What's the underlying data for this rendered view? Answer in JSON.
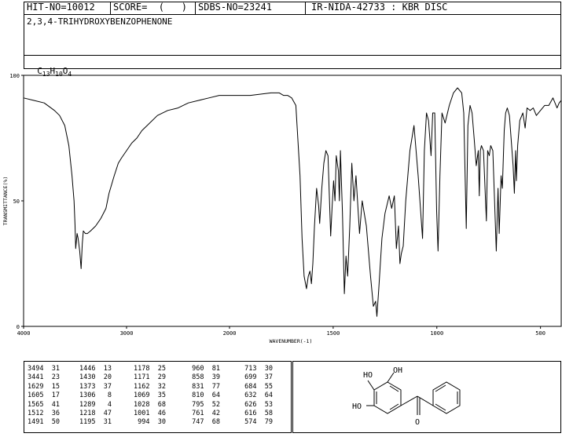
{
  "header": {
    "hit_no": "HIT-NO=10012",
    "score": "SCORE=  (   )",
    "sdbs_no": "SDBS-NO=23241",
    "ir_info": "IR-NIDA-42733 : KBR DISC",
    "compound_name": "2,3,4-TRIHYDROXYBENZOPHENONE",
    "formula_parts": [
      "C",
      "13",
      "H",
      "10",
      "O",
      "4"
    ]
  },
  "chart_data": {
    "type": "line",
    "xlabel": "WAVENUMBER(-1)",
    "ylabel": "TRANSMITTANCE(%)",
    "xlim": [
      4000,
      400
    ],
    "ylim": [
      0,
      100
    ],
    "x_ticks": [
      4000,
      3000,
      2000,
      1500,
      1000,
      500
    ],
    "y_ticks": [
      0,
      50,
      100
    ],
    "series": [
      {
        "color": "#000000",
        "points": [
          [
            4000,
            91
          ],
          [
            3900,
            90
          ],
          [
            3800,
            89
          ],
          [
            3700,
            86
          ],
          [
            3650,
            84
          ],
          [
            3600,
            80
          ],
          [
            3560,
            72
          ],
          [
            3530,
            60
          ],
          [
            3510,
            50
          ],
          [
            3500,
            40
          ],
          [
            3494,
            31
          ],
          [
            3480,
            37
          ],
          [
            3470,
            35
          ],
          [
            3455,
            30
          ],
          [
            3441,
            23
          ],
          [
            3430,
            33
          ],
          [
            3420,
            38
          ],
          [
            3400,
            37
          ],
          [
            3380,
            37
          ],
          [
            3350,
            38
          ],
          [
            3300,
            40
          ],
          [
            3250,
            43
          ],
          [
            3200,
            47
          ],
          [
            3170,
            53
          ],
          [
            3120,
            60
          ],
          [
            3080,
            65
          ],
          [
            3050,
            67
          ],
          [
            3000,
            70
          ],
          [
            2950,
            73
          ],
          [
            2900,
            75
          ],
          [
            2850,
            78
          ],
          [
            2800,
            80
          ],
          [
            2700,
            84
          ],
          [
            2600,
            86
          ],
          [
            2500,
            87
          ],
          [
            2400,
            89
          ],
          [
            2300,
            90
          ],
          [
            2200,
            91
          ],
          [
            2100,
            92
          ],
          [
            2000,
            92
          ],
          [
            1900,
            92
          ],
          [
            1800,
            93
          ],
          [
            1760,
            93
          ],
          [
            1740,
            92
          ],
          [
            1720,
            92
          ],
          [
            1700,
            91
          ],
          [
            1680,
            88
          ],
          [
            1660,
            60
          ],
          [
            1650,
            35
          ],
          [
            1640,
            20
          ],
          [
            1629,
            15
          ],
          [
            1620,
            20
          ],
          [
            1612,
            22
          ],
          [
            1605,
            17
          ],
          [
            1598,
            25
          ],
          [
            1590,
            40
          ],
          [
            1580,
            55
          ],
          [
            1570,
            48
          ],
          [
            1565,
            41
          ],
          [
            1555,
            55
          ],
          [
            1545,
            65
          ],
          [
            1535,
            70
          ],
          [
            1525,
            68
          ],
          [
            1512,
            36
          ],
          [
            1505,
            48
          ],
          [
            1498,
            58
          ],
          [
            1491,
            50
          ],
          [
            1485,
            68
          ],
          [
            1475,
            62
          ],
          [
            1470,
            50
          ],
          [
            1465,
            70
          ],
          [
            1455,
            45
          ],
          [
            1446,
            13
          ],
          [
            1438,
            28
          ],
          [
            1430,
            20
          ],
          [
            1420,
            40
          ],
          [
            1410,
            65
          ],
          [
            1400,
            50
          ],
          [
            1390,
            60
          ],
          [
            1373,
            37
          ],
          [
            1360,
            50
          ],
          [
            1340,
            40
          ],
          [
            1320,
            20
          ],
          [
            1306,
            8
          ],
          [
            1295,
            10
          ],
          [
            1289,
            4
          ],
          [
            1280,
            15
          ],
          [
            1265,
            35
          ],
          [
            1250,
            45
          ],
          [
            1230,
            52
          ],
          [
            1218,
            47
          ],
          [
            1205,
            52
          ],
          [
            1195,
            31
          ],
          [
            1185,
            40
          ],
          [
            1178,
            25
          ],
          [
            1171,
            29
          ],
          [
            1162,
            32
          ],
          [
            1150,
            50
          ],
          [
            1130,
            70
          ],
          [
            1110,
            80
          ],
          [
            1090,
            60
          ],
          [
            1069,
            35
          ],
          [
            1060,
            70
          ],
          [
            1050,
            85
          ],
          [
            1040,
            82
          ],
          [
            1028,
            68
          ],
          [
            1020,
            85
          ],
          [
            1010,
            85
          ],
          [
            1001,
            46
          ],
          [
            994,
            30
          ],
          [
            985,
            60
          ],
          [
            975,
            85
          ],
          [
            960,
            81
          ],
          [
            940,
            88
          ],
          [
            920,
            93
          ],
          [
            900,
            95
          ],
          [
            880,
            93
          ],
          [
            870,
            85
          ],
          [
            858,
            39
          ],
          [
            850,
            80
          ],
          [
            840,
            88
          ],
          [
            830,
            85
          ],
          [
            820,
            75
          ],
          [
            810,
            64
          ],
          [
            800,
            70
          ],
          [
            795,
            52
          ],
          [
            790,
            70
          ],
          [
            785,
            72
          ],
          [
            775,
            70
          ],
          [
            761,
            42
          ],
          [
            755,
            70
          ],
          [
            747,
            68
          ],
          [
            740,
            72
          ],
          [
            730,
            70
          ],
          [
            713,
            30
          ],
          [
            705,
            55
          ],
          [
            699,
            37
          ],
          [
            690,
            60
          ],
          [
            684,
            55
          ],
          [
            675,
            78
          ],
          [
            668,
            85
          ],
          [
            660,
            87
          ],
          [
            650,
            84
          ],
          [
            632,
            64
          ],
          [
            626,
            53
          ],
          [
            620,
            70
          ],
          [
            616,
            58
          ],
          [
            610,
            72
          ],
          [
            600,
            82
          ],
          [
            585,
            85
          ],
          [
            574,
            79
          ],
          [
            565,
            87
          ],
          [
            550,
            86
          ],
          [
            535,
            87
          ],
          [
            520,
            84
          ],
          [
            500,
            86
          ],
          [
            480,
            88
          ],
          [
            460,
            88
          ],
          [
            440,
            91
          ],
          [
            420,
            87
          ],
          [
            410,
            89
          ],
          [
            400,
            90
          ]
        ]
      }
    ]
  },
  "peak_table": [
    [
      [
        3494,
        31
      ],
      [
        3441,
        23
      ],
      [
        1629,
        15
      ],
      [
        1605,
        17
      ],
      [
        1565,
        41
      ],
      [
        1512,
        36
      ],
      [
        1491,
        50
      ]
    ],
    [
      [
        1446,
        13
      ],
      [
        1430,
        20
      ],
      [
        1373,
        37
      ],
      [
        1306,
        8
      ],
      [
        1289,
        4
      ],
      [
        1218,
        47
      ],
      [
        1195,
        31
      ]
    ],
    [
      [
        1178,
        25
      ],
      [
        1171,
        29
      ],
      [
        1162,
        32
      ],
      [
        1069,
        35
      ],
      [
        1028,
        68
      ],
      [
        1001,
        46
      ],
      [
        994,
        30
      ]
    ],
    [
      [
        960,
        81
      ],
      [
        858,
        39
      ],
      [
        831,
        77
      ],
      [
        810,
        64
      ],
      [
        795,
        52
      ],
      [
        761,
        42
      ],
      [
        747,
        68
      ]
    ],
    [
      [
        713,
        30
      ],
      [
        699,
        37
      ],
      [
        684,
        55
      ],
      [
        632,
        64
      ],
      [
        626,
        53
      ],
      [
        616,
        58
      ],
      [
        574,
        79
      ]
    ]
  ],
  "structure": {
    "labels": [
      "HO",
      "OH",
      "HO",
      "O"
    ]
  }
}
